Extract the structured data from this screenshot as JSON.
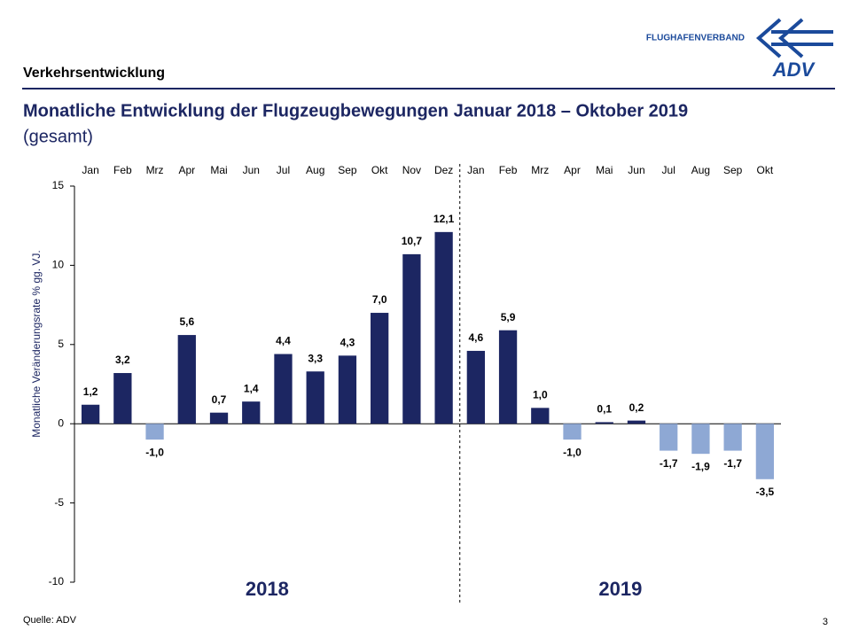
{
  "header": {
    "section": "Verkehrsentwicklung",
    "logo_text": "FLUGHAFENVERBAND",
    "logo_mark": "ADV"
  },
  "chart_data": {
    "type": "bar",
    "title": "Monatliche Entwicklung der Flugzeugbewegungen Januar 2018 – Oktober 2019",
    "subtitle": "(gesamt)",
    "y_label": "Monatliche Veränderungsrate % gg. VJ.",
    "categories": [
      "Jan",
      "Feb",
      "Mrz",
      "Apr",
      "Mai",
      "Jun",
      "Jul",
      "Aug",
      "Sep",
      "Okt",
      "Nov",
      "Dez",
      "Jan",
      "Feb",
      "Mrz",
      "Apr",
      "Mai",
      "Jun",
      "Jul",
      "Aug",
      "Sep",
      "Okt"
    ],
    "values": [
      1.2,
      3.2,
      -1.0,
      5.6,
      0.7,
      1.4,
      4.4,
      3.3,
      4.3,
      7.0,
      10.7,
      12.1,
      4.6,
      5.9,
      1.0,
      -1.0,
      0.1,
      0.2,
      -1.7,
      -1.9,
      -1.7,
      -3.5
    ],
    "value_labels": [
      "1,2",
      "3,2",
      "-1,0",
      "5,6",
      "0,7",
      "1,4",
      "4,4",
      "3,3",
      "4,3",
      "7,0",
      "10,7",
      "12,1",
      "4,6",
      "5,9",
      "1,0",
      "-1,0",
      "0,1",
      "0,2",
      "-1,7",
      "-1,9",
      "-1,7",
      "-3,5"
    ],
    "groups": [
      {
        "label": "2018",
        "size": 12
      },
      {
        "label": "2019",
        "size": 10
      }
    ],
    "color": "#1c2662",
    "negative_color": "#8ea8d4",
    "ylim": [
      -10,
      15
    ],
    "yticks": [
      -10,
      -5,
      0,
      5,
      10,
      15
    ],
    "grid": false
  },
  "footer": {
    "source": "Quelle: ADV",
    "page": "3"
  }
}
